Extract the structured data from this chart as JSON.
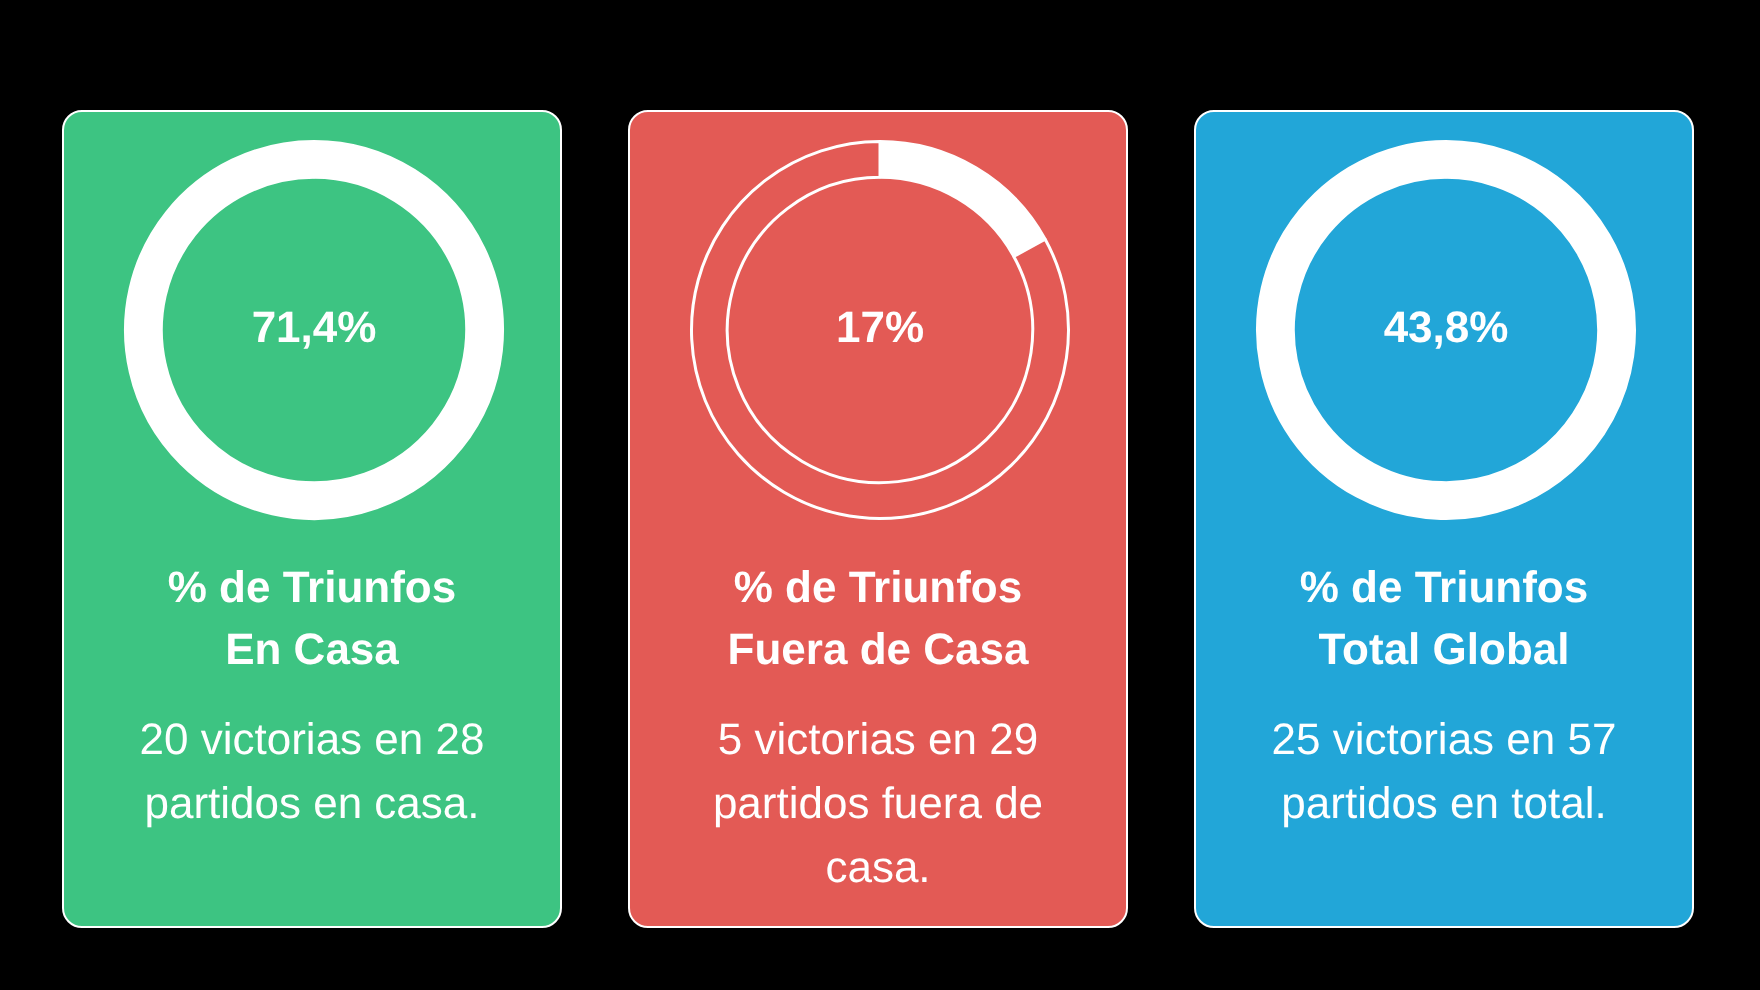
{
  "chart_data": [
    {
      "type": "donut",
      "title": "% de Triunfos",
      "subtitle": "En Casa",
      "categories": [
        null,
        null
      ],
      "values": [
        71.4,
        28.6
      ],
      "colors": [
        "#ffffff",
        "#ffffff"
      ],
      "value_labels": [
        "71,4%",
        null
      ],
      "annotations": [
        "20 victorias en 28 partidos en casa."
      ]
    },
    {
      "type": "donut",
      "title": "% de Triunfos",
      "subtitle": "Fuera de Casa",
      "categories": [
        null,
        null
      ],
      "values": [
        17,
        83
      ],
      "colors": [
        "#ffffff",
        "#e35a55"
      ],
      "value_labels": [
        "17%",
        null
      ],
      "annotations": [
        "5 victorias en 29 partidos fuera de casa."
      ]
    },
    {
      "type": "donut",
      "title": "% de Triunfos",
      "subtitle": "Total Global",
      "categories": [
        null,
        null
      ],
      "values": [
        43.8,
        56.2
      ],
      "colors": [
        "#ffffff",
        "#ffffff"
      ],
      "value_labels": [
        "43,8%",
        null
      ],
      "annotations": [
        "25 victorias en 57 partidos en total."
      ]
    }
  ]
}
